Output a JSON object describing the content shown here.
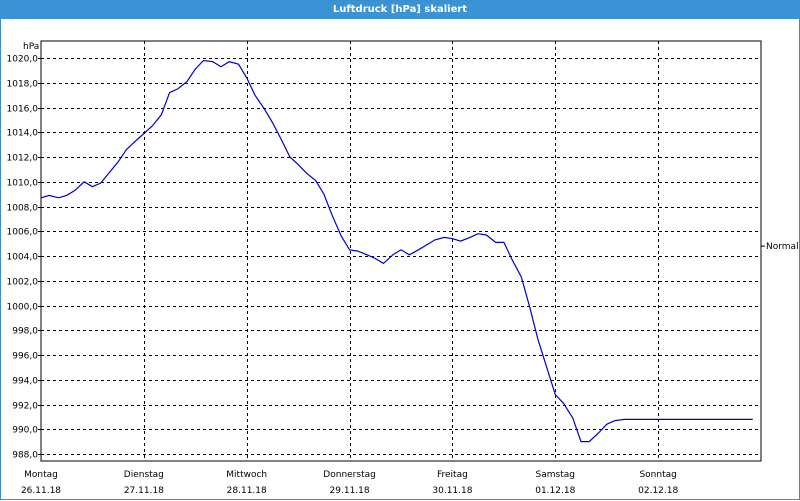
{
  "window": {
    "title": "Luftdruck [hPa] skaliert"
  },
  "chart_data": {
    "type": "line",
    "title": "Luftdruck [hPa] skaliert",
    "ylabel": "hPa",
    "ylim": [
      988.0,
      1020.0
    ],
    "yticks": [
      "1020,0",
      "1018,0",
      "1016,0",
      "1014,0",
      "1012,0",
      "1010,0",
      "1008,0",
      "1006,0",
      "1004,0",
      "1002,0",
      "1000,0",
      "998,0",
      "996,0",
      "994,0",
      "992,0",
      "990,0",
      "988,0"
    ],
    "ytick_values": [
      1020,
      1018,
      1016,
      1014,
      1012,
      1010,
      1008,
      1006,
      1004,
      1002,
      1000,
      998,
      996,
      994,
      992,
      990,
      988
    ],
    "x_days": [
      {
        "day": "Montag",
        "date": "26.11.18"
      },
      {
        "day": "Dienstag",
        "date": "27.11.18"
      },
      {
        "day": "Mittwoch",
        "date": "28.11.18"
      },
      {
        "day": "Donnerstag",
        "date": "29.11.18"
      },
      {
        "day": "Freitag",
        "date": "30.11.18"
      },
      {
        "day": "Samstag",
        "date": "01.12.18"
      },
      {
        "day": "Sonntag",
        "date": "02.12.18"
      }
    ],
    "xlim_days": [
      0,
      7
    ],
    "reference_line": {
      "label": "Normal",
      "value": 1004.8
    },
    "grid": true,
    "line_color": "#0000cc",
    "series": [
      {
        "x": [
          0.0,
          0.08,
          0.17,
          0.25,
          0.33,
          0.42,
          0.5,
          0.58,
          0.67,
          0.75,
          0.83,
          0.92,
          1.0,
          1.08,
          1.17,
          1.25,
          1.33,
          1.42,
          1.5,
          1.58,
          1.67,
          1.75,
          1.83,
          1.92,
          2.0,
          2.08,
          2.17,
          2.25,
          2.33,
          2.42,
          2.5,
          2.58,
          2.67,
          2.75,
          2.83,
          2.92,
          3.0,
          3.08,
          3.17,
          3.25,
          3.33,
          3.42,
          3.5,
          3.58,
          3.67,
          3.75,
          3.83,
          3.92,
          4.0,
          4.08,
          4.17,
          4.25,
          4.33,
          4.42,
          4.5,
          4.58,
          4.67,
          4.75,
          4.83,
          4.92,
          5.0,
          5.08,
          5.17,
          5.25,
          5.33,
          5.42,
          5.5,
          5.58,
          5.67,
          5.75,
          5.83,
          5.92,
          6.0,
          6.08,
          6.17,
          6.25,
          6.33,
          6.42,
          6.5,
          6.58,
          6.67,
          6.75,
          6.83,
          6.92,
          7.0
        ],
        "y": [
          1008.7,
          1008.9,
          1008.7,
          1008.9,
          1009.3,
          1010.0,
          1009.6,
          1009.9,
          1010.8,
          1011.6,
          1012.6,
          1013.3,
          1013.9,
          1014.5,
          1015.4,
          1017.2,
          1017.5,
          1018.1,
          1019.1,
          1019.8,
          1019.7,
          1019.3,
          1019.7,
          1019.5,
          1018.4,
          1017.0,
          1015.9,
          1014.8,
          1013.5,
          1012.0,
          1011.4,
          1010.7,
          1010.1,
          1009.0,
          1007.3,
          1005.6,
          1004.5,
          1004.4,
          1004.1,
          1003.8,
          1003.4,
          1004.1,
          1004.5,
          1004.1,
          1004.5,
          1004.9,
          1005.3,
          1005.5,
          1005.4,
          1005.2,
          1005.5,
          1005.8,
          1005.7,
          1005.1,
          1005.1,
          1003.7,
          1002.3,
          999.9,
          997.3,
          994.9,
          992.8,
          992.1,
          990.9,
          989.0,
          989.0,
          989.7,
          990.4,
          990.7,
          990.8,
          990.8,
          990.8,
          990.8,
          990.8,
          990.8,
          990.8,
          990.8,
          990.8,
          990.8,
          990.8,
          990.8,
          990.8,
          990.8,
          990.8,
          990.8,
          990.8
        ]
      }
    ]
  }
}
